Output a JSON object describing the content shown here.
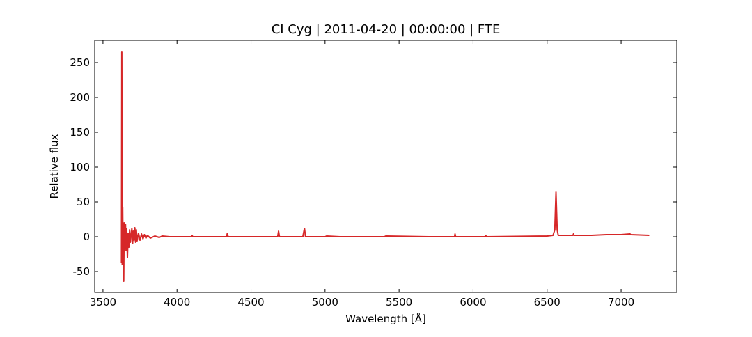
{
  "chart_data": {
    "type": "line",
    "title": "CI Cyg | 2011-04-20 | 00:00:00 | FTE",
    "x_label": "Wavelength [Å]",
    "y_label": "Relative flux",
    "color": "#d62728",
    "x": [
      3625,
      3627,
      3630,
      3633,
      3636,
      3640,
      3643,
      3648,
      3652,
      3656,
      3660,
      3665,
      3670,
      3675,
      3680,
      3685,
      3690,
      3695,
      3700,
      3705,
      3710,
      3715,
      3720,
      3725,
      3730,
      3740,
      3750,
      3760,
      3770,
      3780,
      3790,
      3800,
      3820,
      3850,
      3880,
      3900,
      3950,
      4000,
      4095,
      4101,
      4107,
      4300,
      4335,
      4340,
      4345,
      4680,
      4686,
      4692,
      4850,
      4861,
      4868,
      5000,
      5010,
      5100,
      5400,
      5410,
      5700,
      5875,
      5878,
      5882,
      6080,
      6085,
      6090,
      6500,
      6540,
      6552,
      6560,
      6568,
      6575,
      6675,
      6678,
      6682,
      6800,
      6900,
      7000,
      7060,
      7065,
      7190
    ],
    "values": [
      -38,
      266,
      -40,
      42,
      -35,
      -64,
      20,
      -10,
      18,
      -20,
      12,
      -30,
      5,
      -15,
      10,
      -8,
      2,
      12,
      -10,
      8,
      -5,
      13,
      -8,
      10,
      -6,
      5,
      -5,
      4,
      -3,
      3,
      -2,
      2,
      -2,
      1,
      -1,
      1,
      0,
      0,
      0,
      2,
      0,
      0,
      0,
      5,
      0,
      0,
      8,
      0,
      0,
      12,
      0,
      0,
      1,
      0,
      0,
      1,
      0,
      0,
      4,
      0,
      0,
      2,
      0,
      1,
      2,
      10,
      64,
      10,
      2,
      2,
      4,
      2,
      2,
      3,
      3,
      4,
      3,
      2
    ],
    "xlim": [
      3444,
      7376
    ],
    "ylim": [
      -80,
      282
    ],
    "xticks": [
      3500,
      4000,
      4500,
      5000,
      5500,
      6000,
      6500,
      7000
    ],
    "yticks": [
      -50,
      0,
      50,
      100,
      150,
      200,
      250
    ]
  }
}
